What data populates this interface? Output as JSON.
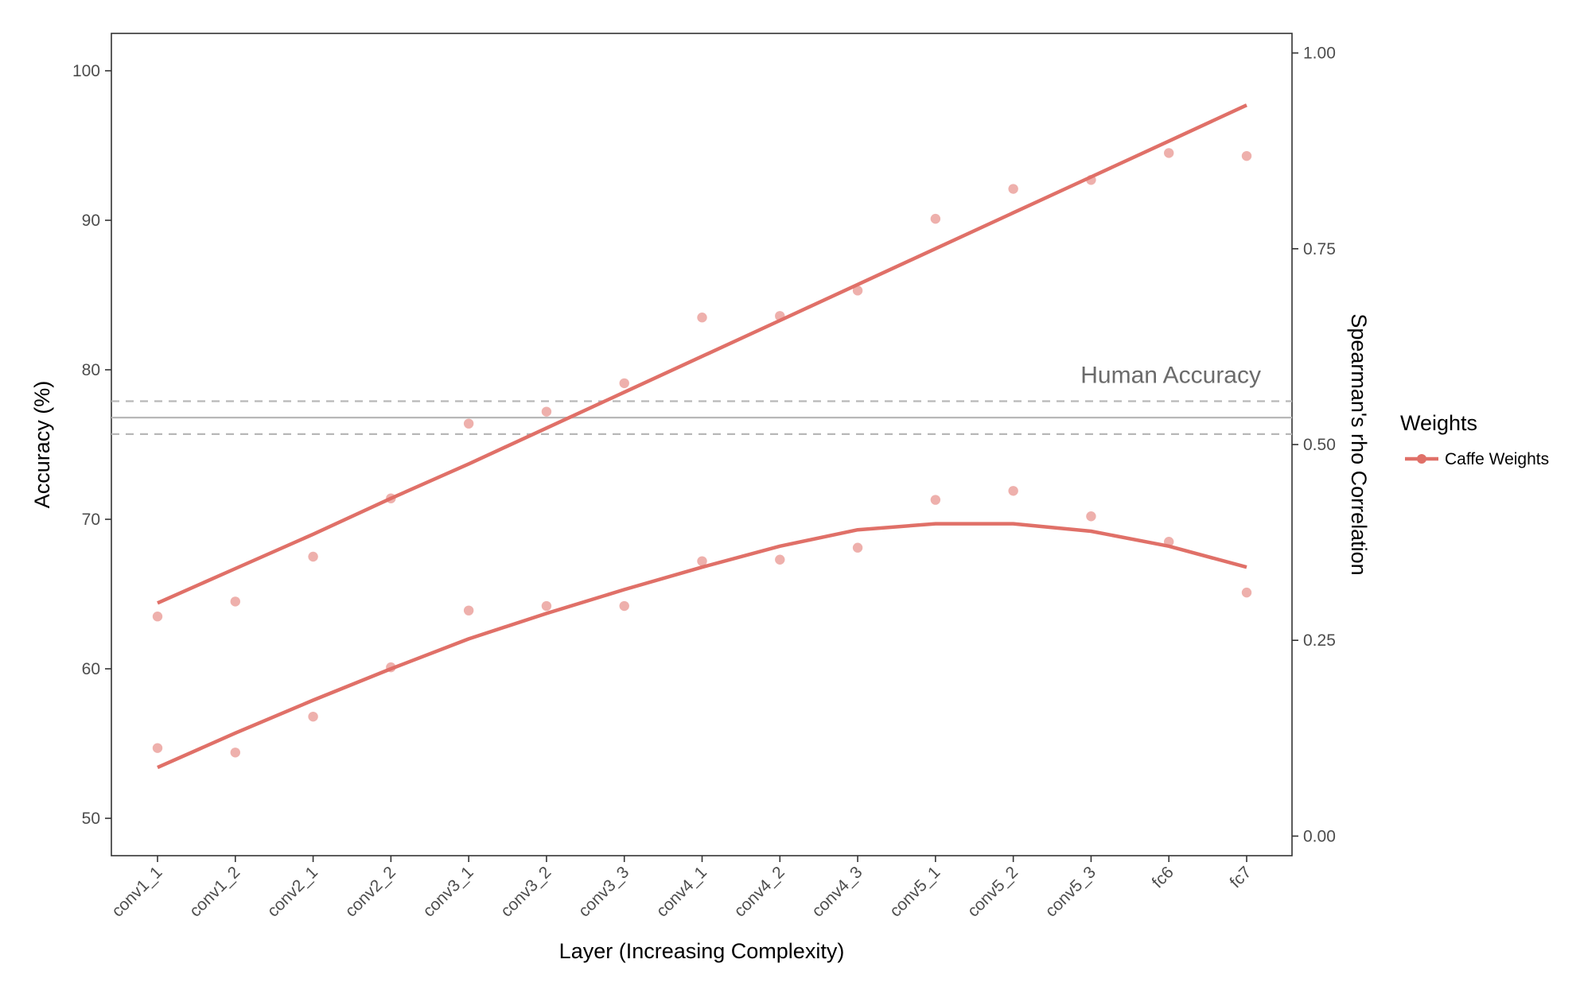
{
  "chart_data": {
    "type": "line",
    "title": "",
    "xlabel": "Layer (Increasing Complexity)",
    "ylabel_left": "Accuracy (%)",
    "ylabel_right": "Spearman's rho Correlation",
    "categories": [
      "conv1_1",
      "conv1_2",
      "conv2_1",
      "conv2_2",
      "conv3_1",
      "conv3_2",
      "conv3_3",
      "conv4_1",
      "conv4_2",
      "conv4_3",
      "conv5_1",
      "conv5_2",
      "conv5_3",
      "fc6",
      "fc7"
    ],
    "ylim_left": [
      47.5,
      102.5
    ],
    "ylim_right": [
      -0.025,
      1.025
    ],
    "yticks_left": [
      50,
      60,
      70,
      80,
      90,
      100
    ],
    "yticks_right": [
      0.0,
      0.25,
      0.5,
      0.75,
      1.0
    ],
    "yticks_right_labels": [
      "0.00",
      "0.25",
      "0.50",
      "0.75",
      "1.00"
    ],
    "grid": false,
    "legend_position": "right",
    "legend": {
      "title": "Weights",
      "entries": [
        {
          "name": "Caffe Weights",
          "color": "#e07068"
        }
      ]
    },
    "series": [
      {
        "name": "Caffe Weights",
        "metric": "accuracy",
        "axis": "left",
        "color": "#e07068",
        "points": [
          63.5,
          64.5,
          67.5,
          71.4,
          76.4,
          77.2,
          79.1,
          83.5,
          83.6,
          85.3,
          90.1,
          92.1,
          92.7,
          94.5,
          94.3
        ],
        "fit": [
          64.4,
          66.7,
          69.0,
          71.4,
          73.7,
          76.1,
          78.5,
          80.9,
          83.3,
          85.7,
          88.1,
          90.5,
          92.9,
          95.3,
          97.7
        ]
      },
      {
        "name": "Caffe Weights",
        "metric": "spearman_rho",
        "axis": "right",
        "color": "#e07068",
        "points": [
          54.7,
          54.4,
          56.8,
          60.1,
          63.9,
          64.2,
          64.2,
          67.2,
          67.3,
          68.1,
          71.3,
          71.9,
          70.2,
          68.5,
          65.1
        ],
        "fit": [
          53.4,
          55.7,
          57.9,
          60.0,
          62.0,
          63.7,
          65.3,
          66.8,
          68.2,
          69.3,
          69.7,
          69.7,
          69.2,
          68.2,
          66.8
        ]
      }
    ],
    "reference_lines": {
      "label": "Human Accuracy",
      "value": 76.8,
      "lower": 75.7,
      "upper": 77.9,
      "color": "#b8b8b8"
    }
  }
}
